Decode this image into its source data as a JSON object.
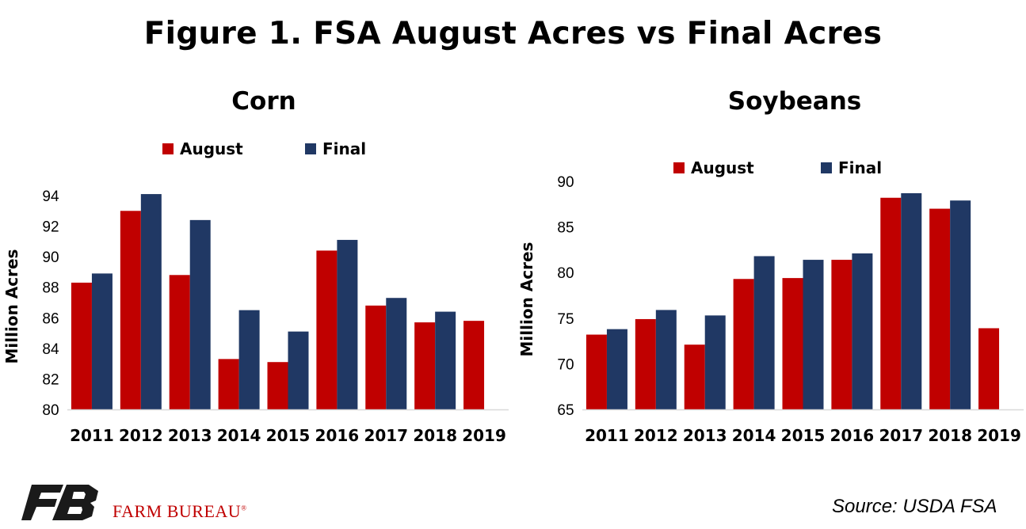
{
  "title": "Figure 1. FSA August Acres vs Final Acres",
  "source": "Source:  USDA FSA",
  "logo_text": "FARM BUREAU",
  "logo_reg": "®",
  "colors": {
    "august": "#c00000",
    "final": "#203864"
  },
  "chart_data": [
    {
      "type": "bar",
      "title": "Corn",
      "ylabel": "Million Acres",
      "categories": [
        "2011",
        "2012",
        "2013",
        "2014",
        "2015",
        "2016",
        "2017",
        "2018",
        "2019"
      ],
      "ylim": [
        80,
        94
      ],
      "yticks": [
        80,
        82,
        84,
        86,
        88,
        90,
        92,
        94
      ],
      "legend": "top",
      "series": [
        {
          "name": "August",
          "values": [
            88.3,
            93.0,
            88.8,
            83.3,
            83.1,
            90.4,
            86.8,
            85.7,
            85.8
          ]
        },
        {
          "name": "Final",
          "values": [
            88.9,
            94.1,
            92.4,
            86.5,
            85.1,
            91.1,
            87.3,
            86.4,
            null
          ]
        }
      ]
    },
    {
      "type": "bar",
      "title": "Soybeans",
      "ylabel": "Million Acres",
      "categories": [
        "2011",
        "2012",
        "2013",
        "2014",
        "2015",
        "2016",
        "2017",
        "2018",
        "2019"
      ],
      "ylim": [
        65,
        90
      ],
      "yticks": [
        65,
        70,
        75,
        80,
        85,
        90
      ],
      "legend": "top",
      "series": [
        {
          "name": "August",
          "values": [
            73.2,
            74.9,
            72.1,
            79.3,
            79.4,
            81.4,
            88.2,
            87.0,
            73.9
          ]
        },
        {
          "name": "Final",
          "values": [
            73.8,
            75.9,
            75.3,
            81.8,
            81.4,
            82.1,
            88.7,
            87.9,
            null
          ]
        }
      ]
    }
  ]
}
